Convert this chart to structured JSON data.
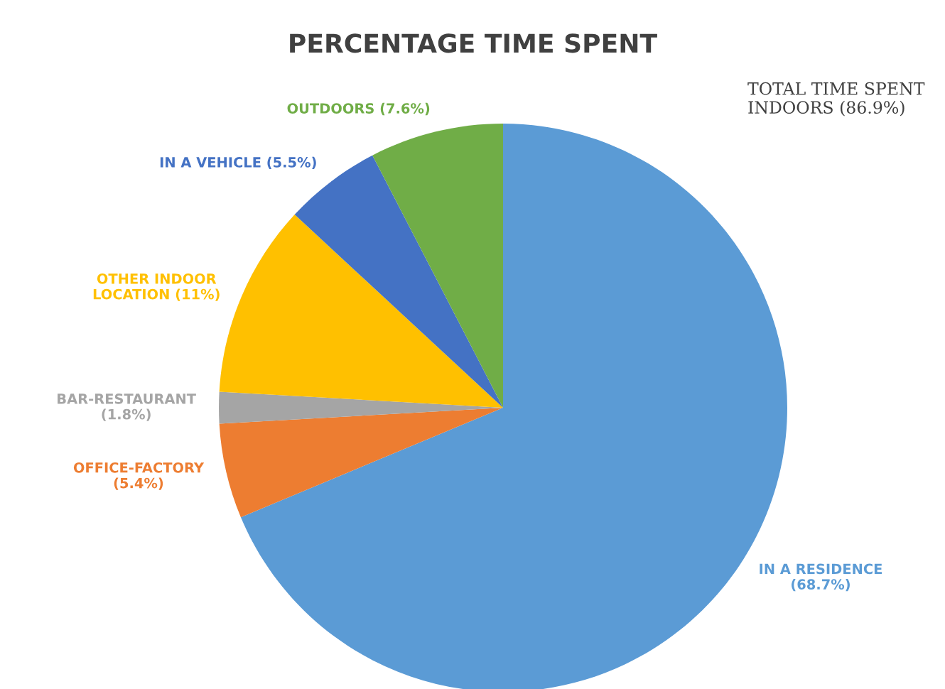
{
  "chart_data": {
    "type": "pie",
    "title": "PERCENTAGE TIME SPENT",
    "categories": [
      "IN A RESIDENCE\n(68.7%)",
      "OFFICE-FACTORY\n(5.4%)",
      "BAR-RESTAURANT\n(1.8%)",
      "OTHER INDOOR\nLOCATION (11%)",
      "IN A VEHICLE (5.5%)",
      "OUTDOORS (7.6%)"
    ],
    "values": [
      68.7,
      5.4,
      1.8,
      11,
      5.5,
      7.6
    ],
    "colors": [
      "#5b9bd5",
      "#ed7d31",
      "#a5a5a5",
      "#ffc000",
      "#4472c4",
      "#70ad47"
    ],
    "annotations": [
      "TOTAL TIME SPENT\nINDOORS (86.9%)"
    ]
  }
}
